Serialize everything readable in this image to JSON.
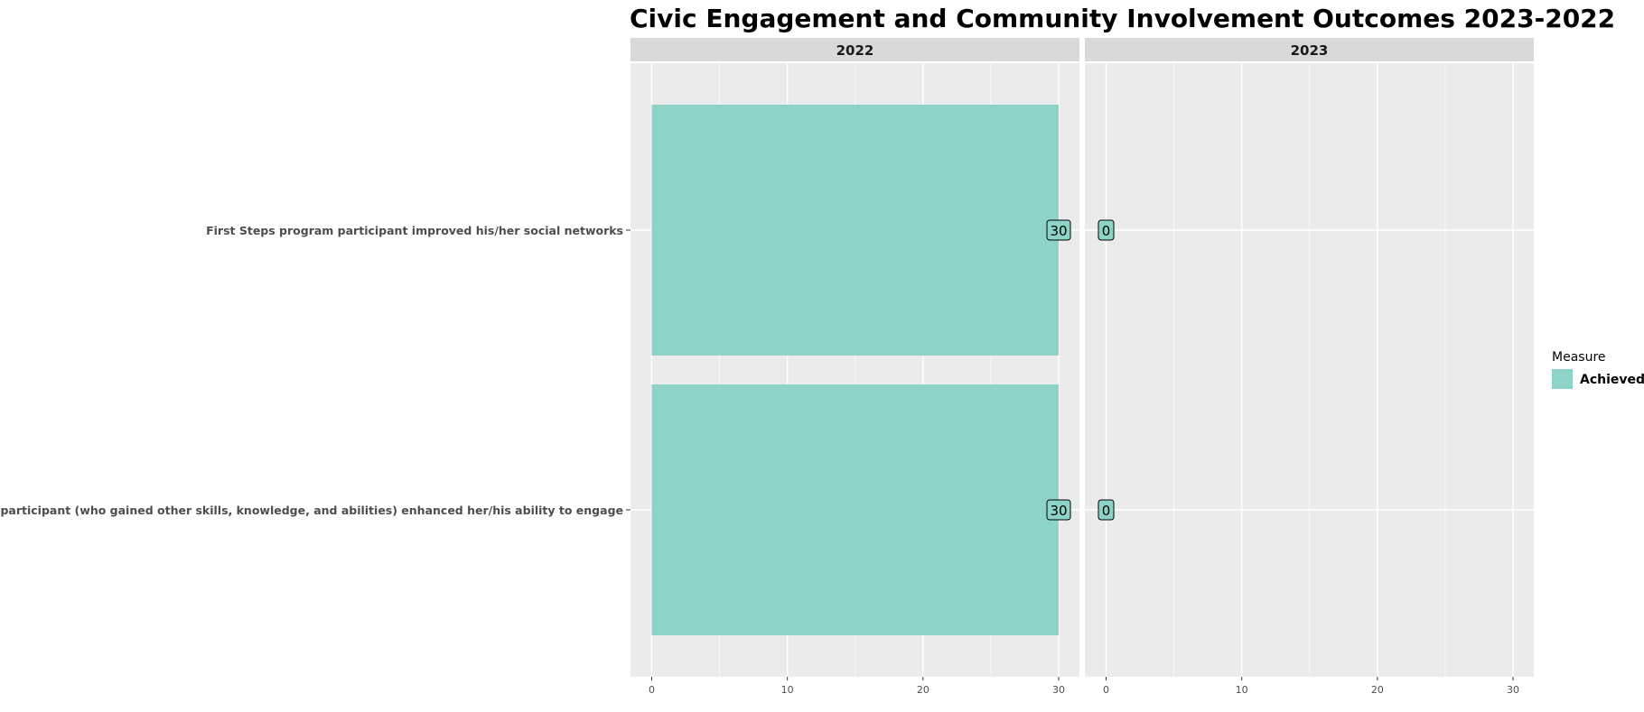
{
  "chart_data": {
    "type": "bar",
    "orientation": "horizontal",
    "title": "Civic Engagement and Community Involvement Outcomes 2023-2022",
    "categories": [
      "First Steps program participant improved his/her social networks",
      "First Steps participant (who gained other skills, knowledge, and abilities) enhanced her/his ability to engage"
    ],
    "panels": [
      {
        "label": "2022",
        "values": [
          30,
          30
        ]
      },
      {
        "label": "2023",
        "values": [
          0,
          0
        ]
      }
    ],
    "series": [
      {
        "name": "Achieved",
        "color": "#8dd3c7"
      }
    ],
    "xlim": [
      0,
      31.5
    ],
    "xticks": [
      0,
      10,
      20,
      30
    ],
    "xlabel": "",
    "ylabel": "",
    "grid": true,
    "legend": {
      "title": "Measure",
      "position": "right"
    },
    "data_labels": true
  },
  "colors": {
    "panel_bg": "#ebebeb",
    "strip_bg": "#d9d9d9",
    "grid_major": "#ffffff",
    "bar": "#8dd3c7",
    "text": "#000000",
    "axis_text": "#4d4d4d"
  }
}
